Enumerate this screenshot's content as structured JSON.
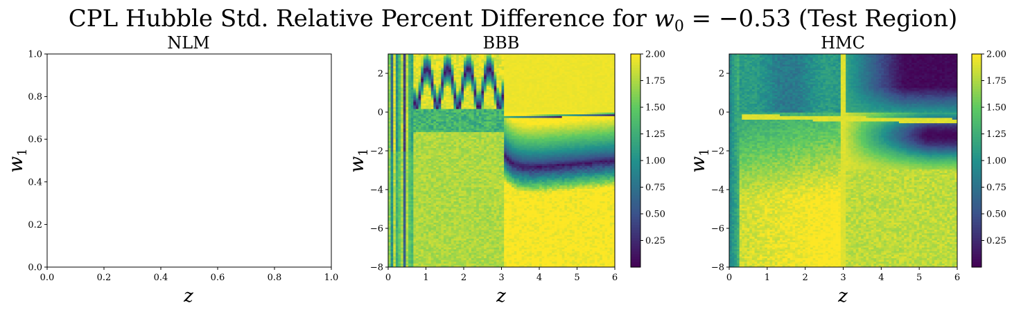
{
  "figure": {
    "title_prefix": "CPL Hubble Std. Relative Percent Difference for ",
    "title_math": "w",
    "title_sub": "0",
    "title_suffix_math": " = −0.53",
    "title_suffix": " (Test Region)"
  },
  "colormap": {
    "name": "viridis",
    "stops": [
      "#440154",
      "#3b528b",
      "#21918c",
      "#5ec962",
      "#fde725"
    ]
  },
  "chart_data": [
    {
      "type": "heatmap",
      "title": "NLM",
      "xlabel": "z",
      "ylabel_var": "w",
      "ylabel_sub": "1",
      "xlim": [
        0,
        1
      ],
      "ylim": [
        0,
        1
      ],
      "xticks": [
        "0.0",
        "0.2",
        "0.4",
        "0.6",
        "0.8",
        "1.0"
      ],
      "yticks": [
        "0.0",
        "0.2",
        "0.4",
        "0.6",
        "0.8",
        "1.0"
      ],
      "values": [],
      "colorbar": false
    },
    {
      "type": "heatmap",
      "title": "BBB",
      "xlabel": "z",
      "ylabel_var": "w",
      "ylabel_sub": "1",
      "xlim": [
        0,
        6
      ],
      "ylim": [
        -8,
        3
      ],
      "xticks": [
        "0",
        "1",
        "2",
        "3",
        "4",
        "5",
        "6"
      ],
      "yticks": [
        "−8",
        "−6",
        "−4",
        "−2",
        "0",
        "2"
      ],
      "grid_shape": [
        120,
        90
      ],
      "value_description": "relative percent difference, clipped to [0, 2]",
      "colorbar": true,
      "colorbar_range": [
        0,
        2
      ],
      "colorbar_ticks": [
        "0.25",
        "0.50",
        "0.75",
        "1.00",
        "1.25",
        "1.50",
        "1.75",
        "2.00"
      ]
    },
    {
      "type": "heatmap",
      "title": "HMC",
      "xlabel": "z",
      "ylabel_var": "w",
      "ylabel_sub": "1",
      "xlim": [
        0,
        6
      ],
      "ylim": [
        -8,
        3
      ],
      "xticks": [
        "0",
        "1",
        "2",
        "3",
        "4",
        "5",
        "6"
      ],
      "yticks": [
        "−8",
        "−6",
        "−4",
        "−2",
        "0",
        "2"
      ],
      "grid_shape": [
        120,
        90
      ],
      "value_description": "relative percent difference, clipped to [0, 2]",
      "colorbar": true,
      "colorbar_range": [
        0,
        2
      ],
      "colorbar_ticks": [
        "0.25",
        "0.50",
        "0.75",
        "1.00",
        "1.25",
        "1.50",
        "1.75",
        "2.00"
      ]
    }
  ]
}
